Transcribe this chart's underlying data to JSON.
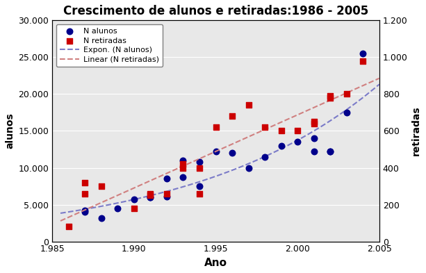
{
  "title": "Crescimento de alunos e retiradas:1986 - 2005",
  "xlabel": "Ano",
  "ylabel_left": "alunos",
  "ylabel_right": "retiradas",
  "alunos_years": [
    1987,
    1987,
    1988,
    1989,
    1990,
    1991,
    1991,
    1992,
    1992,
    1993,
    1993,
    1994,
    1994,
    1995,
    1996,
    1997,
    1998,
    1999,
    2000,
    2001,
    2001,
    2002,
    2002,
    2003,
    2004
  ],
  "alunos_vals": [
    4000,
    4200,
    3200,
    4500,
    5700,
    6000,
    6000,
    6100,
    8500,
    8700,
    11000,
    7500,
    10800,
    12200,
    12000,
    10000,
    11500,
    13000,
    13500,
    12200,
    14000,
    12200,
    12200,
    17500,
    25500
  ],
  "retiradas_years": [
    1986,
    1987,
    1987,
    1988,
    1990,
    1991,
    1991,
    1992,
    1993,
    1993,
    1994,
    1994,
    1995,
    1996,
    1997,
    1998,
    1999,
    2000,
    2001,
    2001,
    2002,
    2002,
    2003,
    2004
  ],
  "retiradas_vals": [
    80,
    260,
    320,
    300,
    180,
    250,
    260,
    260,
    400,
    420,
    400,
    260,
    620,
    680,
    740,
    620,
    600,
    600,
    640,
    650,
    780,
    790,
    800,
    980
  ],
  "xlim": [
    1985,
    2005
  ],
  "ylim_left": [
    0,
    30000
  ],
  "ylim_right": [
    0,
    1200
  ],
  "xticks": [
    1985,
    1990,
    1995,
    2000,
    2005
  ],
  "yticks_left": [
    0,
    5000,
    10000,
    15000,
    20000,
    25000,
    30000
  ],
  "yticks_right": [
    0,
    200,
    400,
    600,
    800,
    1000,
    1200
  ],
  "color_alunos": "#00008B",
  "color_retiradas": "#CC0000",
  "color_exp_line": "#7B7BC8",
  "color_lin_line": "#D08080",
  "bg_color": "#E8E8E8",
  "legend_labels": [
    "N alunos",
    "N retiradas",
    "Expon. (N alunos)",
    "Linear (N retiradas)"
  ],
  "exp_a": 150.0,
  "exp_b": 0.195,
  "exp_x0": 1986,
  "lin_slope": 50.0,
  "lin_intercept": -99600.0
}
